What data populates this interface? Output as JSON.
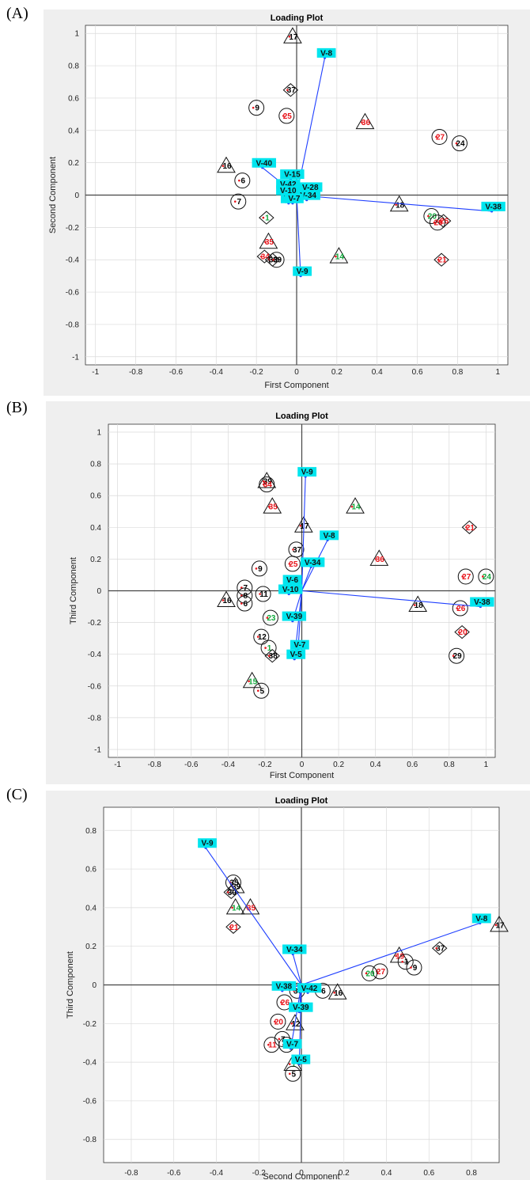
{
  "panels": [
    "(A)",
    "(B)",
    "(C)"
  ],
  "colors": {
    "background": "#efefef",
    "plot_bg": "#ffffff",
    "grid": "#dadada",
    "vector": "#1f3fff",
    "vector_label_bg": "#00e5ee",
    "label_black": "#000000",
    "label_red": "#e8141a",
    "label_green": "#11a83c"
  },
  "chart_data": [
    {
      "type": "scatter",
      "title": "Loading Plot",
      "xlabel": "First Component",
      "ylabel": "Second Component",
      "xlim": [
        -1.05,
        1.05
      ],
      "ylim": [
        -1.05,
        1.05
      ],
      "xticks": [
        "-1",
        "-0.8",
        "-0.6",
        "-0.4",
        "-0.2",
        "0",
        "0.2",
        "0.4",
        "0.6",
        "0.8",
        "1"
      ],
      "yticks": [
        "-1",
        "-0.8",
        "-0.6",
        "-0.4",
        "-0.2",
        "0",
        "0.2",
        "0.4",
        "0.6",
        "0.8",
        "1"
      ],
      "grid": true,
      "vectors": [
        {
          "label": "V-8",
          "x": 0.14,
          "y": 0.85
        },
        {
          "label": "V-40",
          "x": -0.17,
          "y": 0.17
        },
        {
          "label": "V-15",
          "x": -0.03,
          "y": 0.1
        },
        {
          "label": "V-28",
          "x": 0.06,
          "y": 0.02
        },
        {
          "label": "V-42",
          "x": -0.05,
          "y": 0.04
        },
        {
          "label": "V-10",
          "x": -0.05,
          "y": 0.0
        },
        {
          "label": "V-6",
          "x": -0.04,
          "y": -0.05
        },
        {
          "label": "V-34",
          "x": 0.05,
          "y": -0.03
        },
        {
          "label": "V-7",
          "x": -0.02,
          "y": -0.05
        },
        {
          "label": "V-38",
          "x": 0.97,
          "y": -0.1
        },
        {
          "label": "V-9",
          "x": 0.02,
          "y": -0.5
        }
      ],
      "observations": [
        {
          "label": "17",
          "x": -0.02,
          "y": 0.98,
          "shape": "triangle",
          "color": "black"
        },
        {
          "label": "37",
          "x": -0.03,
          "y": 0.65,
          "shape": "diamond",
          "color": "black"
        },
        {
          "label": "9",
          "x": -0.2,
          "y": 0.54,
          "shape": "circle",
          "color": "black"
        },
        {
          "label": "25",
          "x": -0.05,
          "y": 0.49,
          "shape": "circle",
          "color": "red"
        },
        {
          "label": "36",
          "x": 0.34,
          "y": 0.45,
          "shape": "triangle",
          "color": "red"
        },
        {
          "label": "27",
          "x": 0.71,
          "y": 0.36,
          "shape": "circle",
          "color": "red"
        },
        {
          "label": "24",
          "x": 0.81,
          "y": 0.32,
          "shape": "circle",
          "color": "black"
        },
        {
          "label": "16",
          "x": -0.35,
          "y": 0.18,
          "shape": "triangle",
          "color": "black"
        },
        {
          "label": "6",
          "x": -0.27,
          "y": 0.09,
          "shape": "circle",
          "color": "black"
        },
        {
          "label": "7",
          "x": -0.29,
          "y": -0.04,
          "shape": "circle",
          "color": "black"
        },
        {
          "label": "18",
          "x": 0.51,
          "y": -0.06,
          "shape": "triangle",
          "color": "black"
        },
        {
          "label": "20",
          "x": 0.67,
          "y": -0.13,
          "shape": "circle",
          "color": "green"
        },
        {
          "label": "26",
          "x": 0.73,
          "y": -0.16,
          "shape": "diamond",
          "color": "red"
        },
        {
          "label": "29",
          "x": 0.7,
          "y": -0.17,
          "shape": "circle",
          "color": "red"
        },
        {
          "label": "1",
          "x": -0.15,
          "y": -0.14,
          "shape": "diamond",
          "color": "green"
        },
        {
          "label": "21",
          "x": 0.72,
          "y": -0.4,
          "shape": "diamond",
          "color": "red"
        },
        {
          "label": "35",
          "x": -0.14,
          "y": -0.29,
          "shape": "triangle",
          "color": "red"
        },
        {
          "label": "14",
          "x": 0.21,
          "y": -0.38,
          "shape": "triangle",
          "color": "green"
        },
        {
          "label": "34",
          "x": -0.16,
          "y": -0.38,
          "shape": "diamond",
          "color": "red"
        },
        {
          "label": "30",
          "x": -0.12,
          "y": -0.4,
          "shape": "diamond",
          "color": "black"
        },
        {
          "label": "39",
          "x": -0.1,
          "y": -0.4,
          "shape": "circle",
          "color": "black"
        }
      ]
    },
    {
      "type": "scatter",
      "title": "Loading Plot",
      "xlabel": "First Component",
      "ylabel": "Third Component",
      "xlim": [
        -1.05,
        1.05
      ],
      "ylim": [
        -1.05,
        1.05
      ],
      "xticks": [
        "-1",
        "-0.8",
        "-0.6",
        "-0.4",
        "-0.2",
        "0",
        "0.2",
        "0.4",
        "0.6",
        "0.8",
        "1"
      ],
      "yticks": [
        "-1",
        "-0.8",
        "-0.6",
        "-0.4",
        "-0.2",
        "0",
        "0.2",
        "0.4",
        "0.6",
        "0.8",
        "1"
      ],
      "grid": true,
      "vectors": [
        {
          "label": "V-9",
          "x": 0.02,
          "y": 0.72
        },
        {
          "label": "V-8",
          "x": 0.14,
          "y": 0.32
        },
        {
          "label": "V-34",
          "x": 0.05,
          "y": 0.15
        },
        {
          "label": "V-6",
          "x": -0.06,
          "y": 0.04
        },
        {
          "label": "V-10",
          "x": -0.07,
          "y": -0.02
        },
        {
          "label": "V-38",
          "x": 0.97,
          "y": -0.1
        },
        {
          "label": "V-39",
          "x": -0.05,
          "y": -0.19
        },
        {
          "label": "V-7",
          "x": -0.02,
          "y": -0.37
        },
        {
          "label": "V-5",
          "x": -0.04,
          "y": -0.43
        }
      ],
      "observations": [
        {
          "label": "39",
          "x": -0.19,
          "y": 0.69,
          "shape": "triangle",
          "color": "black"
        },
        {
          "label": "34",
          "x": -0.19,
          "y": 0.67,
          "shape": "circle",
          "color": "red"
        },
        {
          "label": "35",
          "x": -0.16,
          "y": 0.53,
          "shape": "triangle",
          "color": "red"
        },
        {
          "label": "14",
          "x": 0.29,
          "y": 0.53,
          "shape": "triangle",
          "color": "green"
        },
        {
          "label": "17",
          "x": 0.01,
          "y": 0.41,
          "shape": "triangle",
          "color": "black"
        },
        {
          "label": "21",
          "x": 0.91,
          "y": 0.4,
          "shape": "diamond",
          "color": "red"
        },
        {
          "label": "37",
          "x": -0.03,
          "y": 0.26,
          "shape": "circle",
          "color": "black"
        },
        {
          "label": "36",
          "x": 0.42,
          "y": 0.2,
          "shape": "triangle",
          "color": "red"
        },
        {
          "label": "25",
          "x": -0.05,
          "y": 0.17,
          "shape": "circle",
          "color": "red"
        },
        {
          "label": "9",
          "x": -0.23,
          "y": 0.14,
          "shape": "circle",
          "color": "black"
        },
        {
          "label": "27",
          "x": 0.89,
          "y": 0.09,
          "shape": "circle",
          "color": "red"
        },
        {
          "label": "24",
          "x": 1.0,
          "y": 0.09,
          "shape": "circle",
          "color": "green"
        },
        {
          "label": "7",
          "x": -0.31,
          "y": 0.02,
          "shape": "circle",
          "color": "black"
        },
        {
          "label": "16",
          "x": -0.41,
          "y": -0.06,
          "shape": "triangle",
          "color": "black"
        },
        {
          "label": "8",
          "x": -0.31,
          "y": -0.03,
          "shape": "circle",
          "color": "black"
        },
        {
          "label": "6",
          "x": -0.31,
          "y": -0.08,
          "shape": "circle",
          "color": "black"
        },
        {
          "label": "11",
          "x": -0.21,
          "y": -0.02,
          "shape": "circle",
          "color": "black"
        },
        {
          "label": "18",
          "x": 0.63,
          "y": -0.09,
          "shape": "triangle",
          "color": "black"
        },
        {
          "label": "26",
          "x": 0.86,
          "y": -0.11,
          "shape": "circle",
          "color": "red"
        },
        {
          "label": "23",
          "x": -0.17,
          "y": -0.17,
          "shape": "circle",
          "color": "green"
        },
        {
          "label": "20",
          "x": 0.87,
          "y": -0.26,
          "shape": "diamond",
          "color": "red"
        },
        {
          "label": "12",
          "x": -0.22,
          "y": -0.29,
          "shape": "circle",
          "color": "black"
        },
        {
          "label": "1",
          "x": -0.18,
          "y": -0.36,
          "shape": "circle",
          "color": "green"
        },
        {
          "label": "38",
          "x": -0.16,
          "y": -0.41,
          "shape": "diamond",
          "color": "black"
        },
        {
          "label": "29",
          "x": 0.84,
          "y": -0.41,
          "shape": "circle",
          "color": "black"
        },
        {
          "label": "15",
          "x": -0.27,
          "y": -0.57,
          "shape": "triangle",
          "color": "green"
        },
        {
          "label": "5",
          "x": -0.22,
          "y": -0.63,
          "shape": "circle",
          "color": "black"
        }
      ]
    },
    {
      "type": "scatter",
      "title": "Loading Plot",
      "xlabel": "Second Component",
      "ylabel": "Third Component",
      "xlim": [
        -0.93,
        0.93
      ],
      "ylim": [
        -0.92,
        0.92
      ],
      "xticks": [
        "-0.8",
        "-0.6",
        "-0.4",
        "-0.2",
        "0",
        "0.2",
        "0.4",
        "0.6",
        "0.8"
      ],
      "yticks": [
        "-0.8",
        "-0.6",
        "-0.4",
        "-0.2",
        "0",
        "0.2",
        "0.4",
        "0.6",
        "0.8"
      ],
      "grid": true,
      "vectors": [
        {
          "label": "V-9",
          "x": -0.45,
          "y": 0.71
        },
        {
          "label": "V-8",
          "x": 0.84,
          "y": 0.32
        },
        {
          "label": "V-34",
          "x": -0.04,
          "y": 0.16
        },
        {
          "label": "V-38",
          "x": -0.09,
          "y": -0.03
        },
        {
          "label": "V-42",
          "x": 0.03,
          "y": -0.04
        },
        {
          "label": "V-39",
          "x": -0.01,
          "y": -0.14
        },
        {
          "label": "V-7",
          "x": -0.05,
          "y": -0.33
        },
        {
          "label": "V-5",
          "x": -0.01,
          "y": -0.41
        }
      ],
      "observations": [
        {
          "label": "35",
          "x": -0.32,
          "y": 0.53,
          "shape": "circle",
          "color": "black"
        },
        {
          "label": "39",
          "x": -0.31,
          "y": 0.51,
          "shape": "triangle",
          "color": "black"
        },
        {
          "label": "30",
          "x": -0.33,
          "y": 0.48,
          "shape": "diamond",
          "color": "black"
        },
        {
          "label": "14",
          "x": -0.31,
          "y": 0.4,
          "shape": "triangle",
          "color": "green"
        },
        {
          "label": "35",
          "x": -0.24,
          "y": 0.4,
          "shape": "triangle",
          "color": "red"
        },
        {
          "label": "21",
          "x": -0.32,
          "y": 0.3,
          "shape": "diamond",
          "color": "red"
        },
        {
          "label": "17",
          "x": 0.93,
          "y": 0.31,
          "shape": "triangle",
          "color": "black"
        },
        {
          "label": "37",
          "x": 0.65,
          "y": 0.19,
          "shape": "diamond",
          "color": "black"
        },
        {
          "label": "19",
          "x": 0.46,
          "y": 0.15,
          "shape": "triangle",
          "color": "red"
        },
        {
          "label": "1",
          "x": 0.49,
          "y": 0.12,
          "shape": "circle",
          "color": "black"
        },
        {
          "label": "9",
          "x": 0.53,
          "y": 0.09,
          "shape": "circle",
          "color": "black"
        },
        {
          "label": "27",
          "x": 0.37,
          "y": 0.07,
          "shape": "circle",
          "color": "red"
        },
        {
          "label": "20",
          "x": 0.32,
          "y": 0.06,
          "shape": "circle",
          "color": "green"
        },
        {
          "label": "6",
          "x": 0.1,
          "y": -0.03,
          "shape": "circle",
          "color": "black"
        },
        {
          "label": "16",
          "x": 0.17,
          "y": -0.04,
          "shape": "triangle",
          "color": "black"
        },
        {
          "label": "36",
          "x": -0.02,
          "y": -0.03,
          "shape": "circle",
          "color": "black"
        },
        {
          "label": "26",
          "x": -0.08,
          "y": -0.09,
          "shape": "circle",
          "color": "red"
        },
        {
          "label": "12",
          "x": -0.03,
          "y": -0.2,
          "shape": "triangle",
          "color": "black"
        },
        {
          "label": "20",
          "x": -0.11,
          "y": -0.19,
          "shape": "circle",
          "color": "red"
        },
        {
          "label": "7",
          "x": -0.09,
          "y": -0.28,
          "shape": "circle",
          "color": "black"
        },
        {
          "label": "11",
          "x": -0.14,
          "y": -0.31,
          "shape": "circle",
          "color": "red"
        },
        {
          "label": "38",
          "x": -0.07,
          "y": -0.31,
          "shape": "circle",
          "color": "black"
        },
        {
          "label": "1",
          "x": -0.04,
          "y": -0.41,
          "shape": "triangle",
          "color": "green"
        },
        {
          "label": "5",
          "x": -0.04,
          "y": -0.46,
          "shape": "circle",
          "color": "black"
        }
      ]
    }
  ]
}
